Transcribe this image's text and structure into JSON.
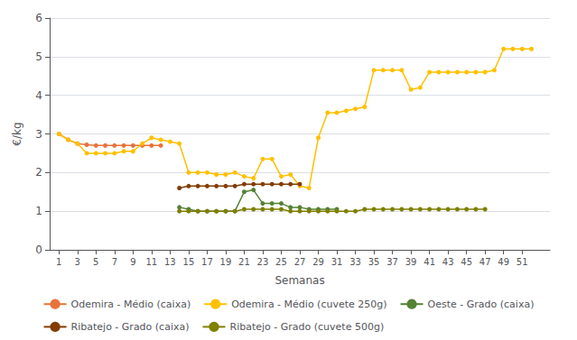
{
  "chart_data": {
    "type": "line",
    "xlabel": "Semanas",
    "ylabel": "€/kg",
    "xlim": [
      0,
      54
    ],
    "xticks": [
      1,
      3,
      5,
      7,
      9,
      11,
      13,
      15,
      17,
      19,
      21,
      23,
      25,
      27,
      29,
      31,
      33,
      35,
      37,
      39,
      41,
      43,
      45,
      47,
      49,
      51
    ],
    "ylim": [
      0,
      6
    ],
    "yticks": [
      0,
      1,
      2,
      3,
      4,
      5,
      6
    ],
    "grid": true,
    "legend": "bottom",
    "marker": "circle",
    "series": [
      {
        "name": "Odemira - Médio (caixa)",
        "color": "#E8733A",
        "x": [
          1,
          2,
          3,
          4,
          5,
          6,
          7,
          8,
          9,
          10,
          11,
          12
        ],
        "values": [
          3.0,
          2.85,
          2.75,
          2.72,
          2.7,
          2.7,
          2.7,
          2.7,
          2.7,
          2.7,
          2.7,
          2.7
        ]
      },
      {
        "name": "Odemira - Médio (cuvete 250g)",
        "color": "#FFC000",
        "x": [
          1,
          2,
          3,
          4,
          5,
          6,
          7,
          8,
          9,
          10,
          11,
          12,
          13,
          14,
          15,
          16,
          17,
          18,
          19,
          20,
          21,
          22,
          23,
          24,
          25,
          26,
          27,
          28,
          29,
          30,
          31,
          32,
          33,
          34,
          35,
          36,
          37,
          38,
          39,
          40,
          41,
          42,
          43,
          44,
          45,
          46,
          47,
          48,
          49,
          50,
          51,
          52
        ],
        "values": [
          3.0,
          2.85,
          2.75,
          2.5,
          2.5,
          2.5,
          2.5,
          2.55,
          2.55,
          2.75,
          2.9,
          2.85,
          2.8,
          2.75,
          2.0,
          2.0,
          2.0,
          1.95,
          1.95,
          2.0,
          1.9,
          1.85,
          2.35,
          2.35,
          1.9,
          1.95,
          1.65,
          1.6,
          2.9,
          3.55,
          3.55,
          3.6,
          3.65,
          3.7,
          4.65,
          4.65,
          4.65,
          4.65,
          4.15,
          4.2,
          4.6,
          4.6,
          4.6,
          4.6,
          4.6,
          4.6,
          4.6,
          4.65,
          5.2,
          5.2,
          5.2,
          5.2
        ]
      },
      {
        "name": "Oeste - Grado (caixa)",
        "color": "#548235",
        "x": [
          14,
          15,
          16,
          17,
          18,
          19,
          20,
          21,
          22,
          23,
          24,
          25,
          26,
          27,
          28,
          29,
          30,
          31
        ],
        "values": [
          1.1,
          1.05,
          1.0,
          1.0,
          1.0,
          1.0,
          1.0,
          1.5,
          1.55,
          1.2,
          1.2,
          1.2,
          1.1,
          1.1,
          1.05,
          1.05,
          1.05,
          1.05
        ]
      },
      {
        "name": "Ribatejo - Grado (caixa)",
        "color": "#833C00",
        "x": [
          14,
          15,
          16,
          17,
          18,
          19,
          20,
          21,
          22,
          23,
          24,
          25,
          26,
          27
        ],
        "values": [
          1.6,
          1.65,
          1.65,
          1.65,
          1.65,
          1.65,
          1.65,
          1.7,
          1.7,
          1.7,
          1.7,
          1.7,
          1.7,
          1.7
        ]
      },
      {
        "name": "Ribatejo - Grado (cuvete 500g)",
        "color": "#7F7F00",
        "x": [
          14,
          15,
          16,
          17,
          18,
          19,
          20,
          21,
          22,
          23,
          24,
          25,
          26,
          27,
          28,
          29,
          30,
          31,
          32,
          33,
          34,
          35,
          36,
          37,
          38,
          39,
          40,
          41,
          42,
          43,
          44,
          45,
          46,
          47
        ],
        "values": [
          1.0,
          1.0,
          1.0,
          1.0,
          1.0,
          1.0,
          1.0,
          1.05,
          1.05,
          1.05,
          1.05,
          1.05,
          1.0,
          1.0,
          1.0,
          1.0,
          1.0,
          1.0,
          1.0,
          1.0,
          1.05,
          1.05,
          1.05,
          1.05,
          1.05,
          1.05,
          1.05,
          1.05,
          1.05,
          1.05,
          1.05,
          1.05,
          1.05,
          1.05
        ]
      }
    ]
  }
}
